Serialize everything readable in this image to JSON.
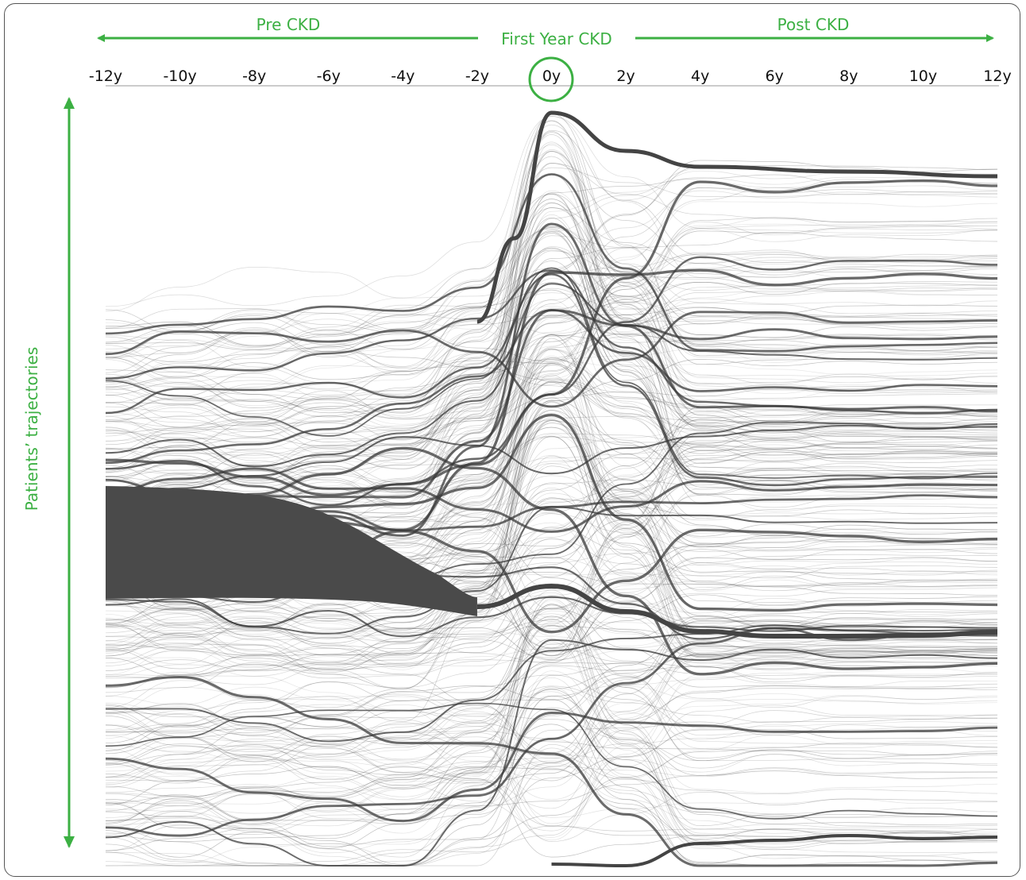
{
  "chart_data": {
    "type": "line",
    "title": "",
    "xlabel": "",
    "ylabel": "Patients’ trajectories",
    "x_ticks": [
      "-12y",
      "-10y",
      "-8y",
      "-6y",
      "-4y",
      "-2y",
      "0y",
      "2y",
      "4y",
      "6y",
      "8y",
      "10y",
      "12y"
    ],
    "xlim": [
      -12,
      12
    ],
    "highlighted_tick": "0y",
    "phases": {
      "pre": "Pre CKD",
      "first": "First Year CKD",
      "post": "Post CKD"
    },
    "grid": false,
    "legend": "none",
    "colors": {
      "accent": "#3cb043",
      "lines": "#3a3a3a"
    }
  }
}
